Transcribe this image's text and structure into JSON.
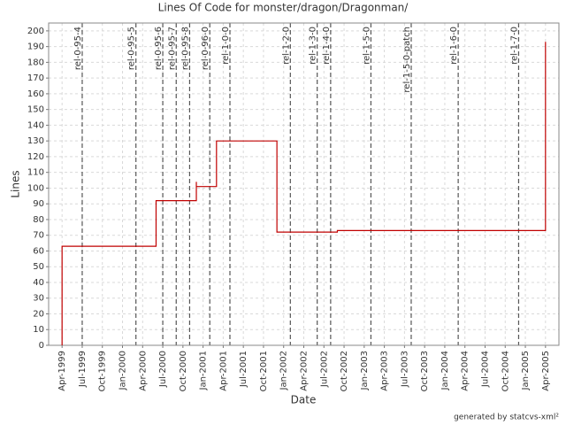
{
  "chart_data": {
    "type": "line",
    "step": "post",
    "title": "Lines Of Code for monster/dragon/Dragonman/",
    "x_label": "Date",
    "y_label": "Lines",
    "footer": "generated by statcvs-xml²",
    "grid": true,
    "xlim": [
      "1999-02",
      "2005-06"
    ],
    "ylim": [
      0,
      205
    ],
    "yticks": [
      0,
      10,
      20,
      30,
      40,
      50,
      60,
      70,
      80,
      90,
      100,
      110,
      120,
      130,
      140,
      150,
      160,
      170,
      180,
      190,
      200
    ],
    "xticks": [
      {
        "value": "1999-04",
        "label": "Apr-1999"
      },
      {
        "value": "1999-07",
        "label": "Jul-1999"
      },
      {
        "value": "1999-10",
        "label": "Oct-1999"
      },
      {
        "value": "2000-01",
        "label": "Jan-2000"
      },
      {
        "value": "2000-04",
        "label": "Apr-2000"
      },
      {
        "value": "2000-07",
        "label": "Jul-2000"
      },
      {
        "value": "2000-10",
        "label": "Oct-2000"
      },
      {
        "value": "2001-01",
        "label": "Jan-2001"
      },
      {
        "value": "2001-04",
        "label": "Apr-2001"
      },
      {
        "value": "2001-07",
        "label": "Jul-2001"
      },
      {
        "value": "2001-10",
        "label": "Oct-2001"
      },
      {
        "value": "2002-01",
        "label": "Jan-2002"
      },
      {
        "value": "2002-04",
        "label": "Apr-2002"
      },
      {
        "value": "2002-07",
        "label": "Jul-2002"
      },
      {
        "value": "2002-10",
        "label": "Oct-2002"
      },
      {
        "value": "2003-01",
        "label": "Jan-2003"
      },
      {
        "value": "2003-04",
        "label": "Apr-2003"
      },
      {
        "value": "2003-07",
        "label": "Jul-2003"
      },
      {
        "value": "2003-10",
        "label": "Oct-2003"
      },
      {
        "value": "2004-01",
        "label": "Jan-2004"
      },
      {
        "value": "2004-04",
        "label": "Apr-2004"
      },
      {
        "value": "2004-07",
        "label": "Jul-2004"
      },
      {
        "value": "2004-10",
        "label": "Oct-2004"
      },
      {
        "value": "2005-01",
        "label": "Jan-2005"
      },
      {
        "value": "2005-04",
        "label": "Apr-2005"
      }
    ],
    "series": [
      {
        "name": "Lines",
        "color": "#c00000",
        "x": [
          "1999-04",
          "1999-04",
          "2000-06",
          "2000-12",
          "2000-12",
          "2001-03",
          "2001-12",
          "2002-09",
          "2005-04"
        ],
        "values": [
          0,
          63,
          92,
          104,
          101,
          130,
          72,
          73,
          193
        ]
      }
    ],
    "tags": [
      {
        "label": "rel-0-95-4",
        "x": "1999-07"
      },
      {
        "label": "rel-0-95-5",
        "x": "2000-03"
      },
      {
        "label": "rel-0-95-6",
        "x": "2000-07"
      },
      {
        "label": "rel-0-95-7",
        "x": "2000-09"
      },
      {
        "label": "rel-0-95-8",
        "x": "2000-11"
      },
      {
        "label": "rel-0-96-0",
        "x": "2001-02"
      },
      {
        "label": "rel-1-0-0",
        "x": "2001-05"
      },
      {
        "label": "rel-1-2-0",
        "x": "2002-02"
      },
      {
        "label": "rel-1-3-0",
        "x": "2002-06"
      },
      {
        "label": "rel-1-4-0",
        "x": "2002-08"
      },
      {
        "label": "rel-1-5-0",
        "x": "2003-02"
      },
      {
        "label": "rel-1-5-0-patch",
        "x": "2003-08"
      },
      {
        "label": "rel-1-6-0",
        "x": "2004-03"
      },
      {
        "label": "rel-1-7-0",
        "x": "2004-12"
      }
    ]
  }
}
